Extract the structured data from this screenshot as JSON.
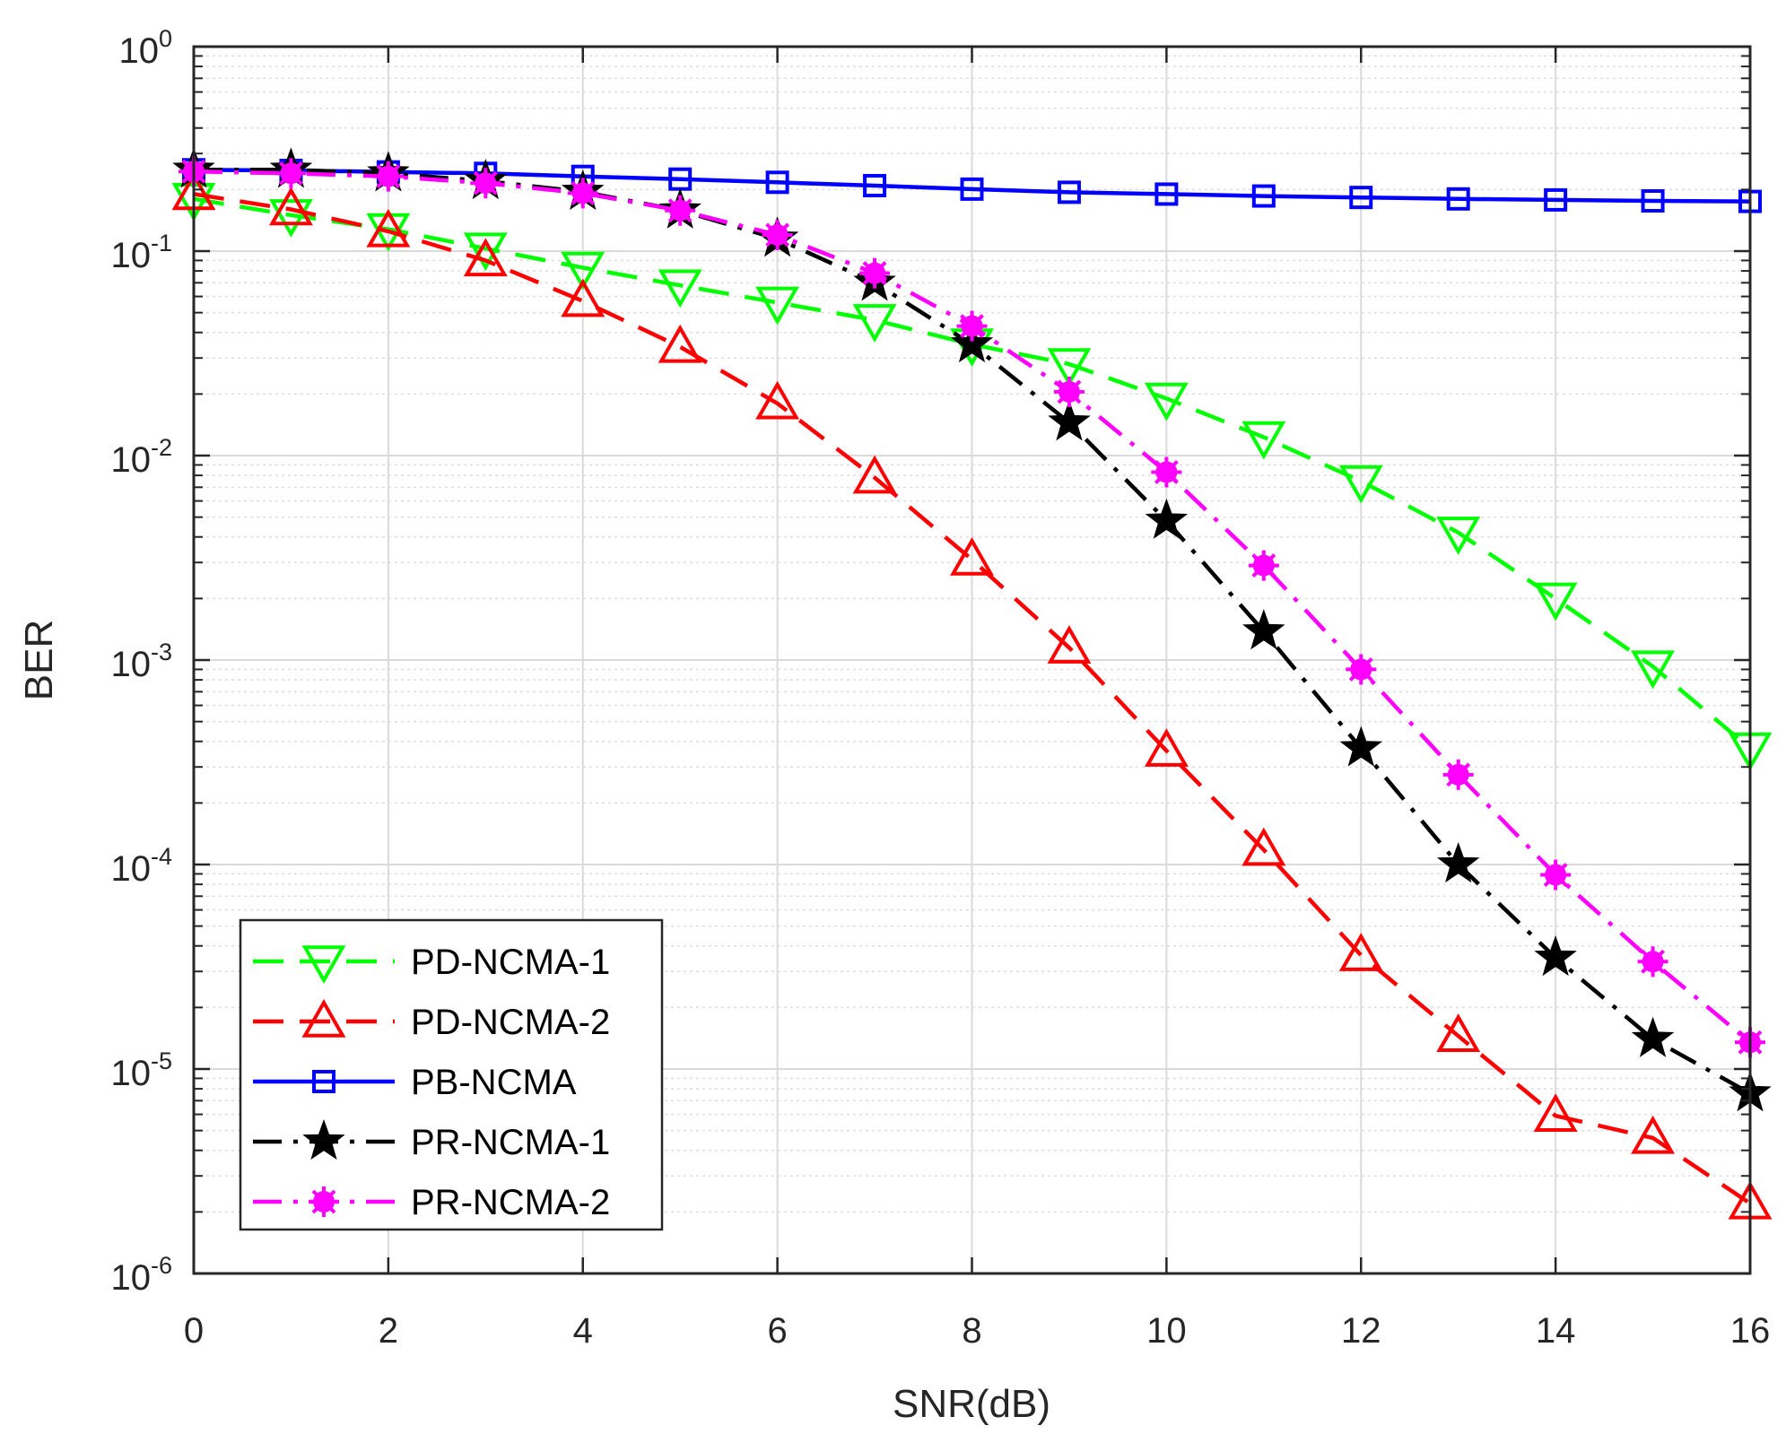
{
  "chart_data": {
    "type": "line",
    "title": "",
    "xlabel": "SNR(dB)",
    "ylabel": "BER",
    "xlim": [
      0,
      16
    ],
    "ylim": [
      1e-06,
      1
    ],
    "yscale": "log",
    "grid": true,
    "minor_grid": true,
    "legend_position": "bottom-left",
    "x_ticks": [
      "0",
      "2",
      "4",
      "6",
      "8",
      "10",
      "12",
      "14",
      "16"
    ],
    "y_ticks": [
      {
        "base": "10",
        "exp": "-6"
      },
      {
        "base": "10",
        "exp": "-5"
      },
      {
        "base": "10",
        "exp": "-4"
      },
      {
        "base": "10",
        "exp": "-3"
      },
      {
        "base": "10",
        "exp": "-2"
      },
      {
        "base": "10",
        "exp": "-1"
      },
      {
        "base": "10",
        "exp": "0"
      }
    ],
    "x": [
      0,
      1,
      2,
      3,
      4,
      5,
      6,
      7,
      8,
      9,
      10,
      11,
      12,
      13,
      14,
      15,
      16
    ],
    "series": [
      {
        "name": "PD-NCMA-1",
        "color": "#00ff00",
        "dash": "dashed",
        "marker": "triangle-down",
        "values": [
          0.18,
          0.15,
          0.128,
          0.103,
          0.083,
          0.068,
          0.056,
          0.046,
          0.035,
          0.028,
          0.019,
          0.0123,
          0.0075,
          0.0042,
          0.002,
          0.00093,
          0.00037
        ]
      },
      {
        "name": "PD-NCMA-2",
        "color": "#ff0000",
        "dash": "dashed",
        "marker": "triangle-up",
        "values": [
          0.19,
          0.16,
          0.125,
          0.09,
          0.057,
          0.034,
          0.018,
          0.0078,
          0.0031,
          0.00115,
          0.00036,
          0.000118,
          3.6e-05,
          1.45e-05,
          5.9e-06,
          4.6e-06,
          2.2e-06
        ]
      },
      {
        "name": "PB-NCMA",
        "color": "#0000ff",
        "dash": "solid",
        "marker": "square",
        "values": [
          0.25,
          0.248,
          0.244,
          0.24,
          0.232,
          0.225,
          0.217,
          0.209,
          0.201,
          0.194,
          0.19,
          0.186,
          0.183,
          0.18,
          0.178,
          0.176,
          0.175
        ]
      },
      {
        "name": "PR-NCMA-1",
        "color": "#000000",
        "dash": "dashdot",
        "marker": "star",
        "values": [
          0.25,
          0.25,
          0.24,
          0.22,
          0.195,
          0.158,
          0.115,
          0.07,
          0.035,
          0.0145,
          0.0048,
          0.00138,
          0.00037,
          0.0001,
          3.5e-05,
          1.4e-05,
          7.6e-06
        ]
      },
      {
        "name": "PR-NCMA-2",
        "color": "#ff00ff",
        "dash": "dashdot",
        "marker": "asterisk",
        "values": [
          0.245,
          0.24,
          0.232,
          0.215,
          0.192,
          0.158,
          0.12,
          0.078,
          0.043,
          0.0205,
          0.0083,
          0.0029,
          0.0009,
          0.000275,
          8.9e-05,
          3.35e-05,
          1.35e-05
        ]
      }
    ]
  }
}
